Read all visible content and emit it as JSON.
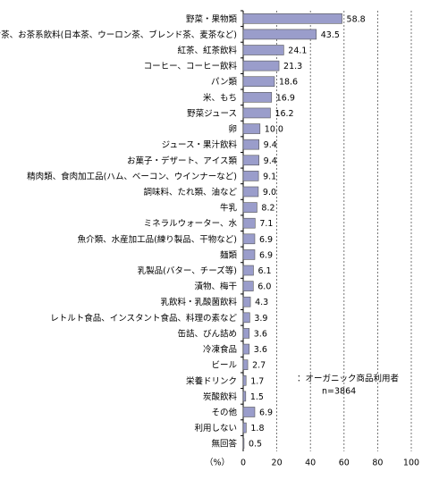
{
  "chart_data": {
    "type": "bar",
    "orientation": "horizontal",
    "categories": [
      "野菜・果物類",
      "お茶、お茶系飲料(日本茶、ウーロン茶、ブレンド茶、麦茶など)",
      "紅茶、紅茶飲料",
      "コーヒー、コーヒー飲料",
      "パン類",
      "米、もち",
      "野菜ジュース",
      "卵",
      "ジュース・果汁飲料",
      "お菓子・デザート、アイス類",
      "精肉類、食肉加工品(ハム、ベーコン、ウインナーなど)",
      "調味料、たれ類、油など",
      "牛乳",
      "ミネラルウォーター、水",
      "魚介類、水産加工品(練り製品、干物など)",
      "麺類",
      "乳製品(バター、チーズ等)",
      "漬物、梅干",
      "乳飲料・乳酸菌飲料",
      "レトルト食品、インスタント食品、料理の素など",
      "缶詰、びん詰め",
      "冷凍食品",
      "ビール",
      "栄養ドリンク",
      "炭酸飲料",
      "その他",
      "利用しない",
      "無回答"
    ],
    "series": [
      {
        "name": "：オーガニック商品利用者",
        "color": "#9a9dcb",
        "values": [
          58.8,
          43.5,
          24.1,
          21.3,
          18.6,
          16.9,
          16.2,
          10.0,
          9.4,
          9.4,
          9.1,
          9.0,
          8.2,
          7.1,
          6.9,
          6.9,
          6.1,
          6.0,
          4.3,
          3.9,
          3.6,
          3.6,
          2.7,
          1.7,
          1.5,
          6.9,
          1.8,
          0.5
        ],
        "value_labels": [
          "58.8",
          "43.5",
          "24.1",
          "21.3",
          "18.6",
          "16.9",
          "16.2",
          "10.0",
          "9.4",
          "9.4",
          "9.1",
          "9.0",
          "8.2",
          "7.1",
          "6.9",
          "6.9",
          "6.1",
          "6.0",
          "4.3",
          "3.9",
          "3.6",
          "3.6",
          "2.7",
          "1.7",
          "1.5",
          "6.9",
          "1.8",
          "0.5"
        ]
      }
    ],
    "note": "n=3864",
    "x_label": "（%）",
    "xlim": [
      0,
      100
    ],
    "xticks": [
      0,
      20,
      40,
      60,
      80,
      100
    ],
    "grid": true
  }
}
